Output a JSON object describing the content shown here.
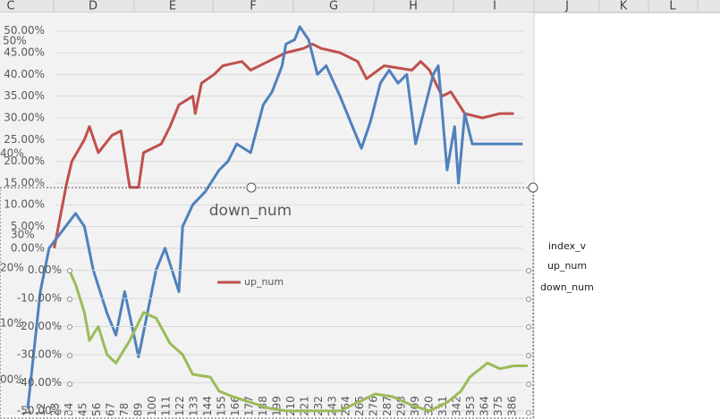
{
  "spreadsheet": {
    "columns": [
      "C",
      "D",
      "E",
      "F",
      "G",
      "H",
      "I",
      "J",
      "K",
      "L"
    ]
  },
  "side_labels": [
    "index_v",
    "up_num",
    "down_num"
  ],
  "background_axis_labels": [
    "50%",
    "40%",
    "30%",
    "20%",
    "10%",
    "00%"
  ],
  "chart_data": [
    {
      "type": "line",
      "xlim": [
        1,
        398
      ],
      "ylim": [
        -38.5,
        52
      ],
      "grid": true,
      "legend": "center",
      "yticks": [
        {
          "value": 0,
          "label": "0.00%"
        },
        {
          "value": 5,
          "label": "5.00%"
        },
        {
          "value": 10,
          "label": "10.00%"
        },
        {
          "value": 15,
          "label": "15.00%"
        },
        {
          "value": 20,
          "label": "20.00%"
        },
        {
          "value": 25,
          "label": "25.00%"
        },
        {
          "value": 30,
          "label": "30.00%"
        },
        {
          "value": 35,
          "label": "35.00%"
        },
        {
          "value": 40,
          "label": "40.00%"
        },
        {
          "value": 45,
          "label": "45.00%"
        },
        {
          "value": 50,
          "label": "50.00%"
        }
      ],
      "series": [
        {
          "name": "up_num",
          "color": "#c0504d",
          "x": [
            22,
            32,
            36,
            46,
            50,
            57,
            68,
            75,
            82,
            89,
            93,
            107,
            114,
            121,
            132,
            134,
            139,
            149,
            156,
            171,
            178,
            192,
            206,
            220,
            227,
            234,
            249,
            263,
            270,
            284,
            306,
            313,
            320,
            330,
            337,
            348,
            362,
            376,
            387
          ],
          "values": [
            0,
            15,
            20,
            25,
            28,
            22,
            26,
            27,
            14,
            14,
            22,
            24,
            28,
            33,
            35,
            31,
            38,
            40,
            42,
            43,
            41,
            43,
            45,
            46,
            47,
            46,
            45,
            43,
            39,
            42,
            41,
            43,
            41,
            35,
            36,
            31,
            30,
            31,
            31
          ]
        },
        {
          "color": "#4f81bd",
          "x": [
            1,
            11,
            18,
            39,
            46,
            53,
            64,
            71,
            78,
            89,
            103,
            110,
            121,
            124,
            132,
            142,
            153,
            160,
            167,
            178,
            188,
            195,
            203,
            206,
            213,
            217,
            224,
            231,
            238,
            249,
            256,
            266,
            273,
            281,
            288,
            295,
            302,
            309,
            316,
            323,
            327,
            334,
            340,
            343,
            348,
            354,
            394
          ],
          "values": [
            -37,
            -10,
            0,
            8,
            5,
            -5,
            -15,
            -20,
            -10,
            -25,
            -5,
            0,
            -10,
            5,
            10,
            13,
            18,
            20,
            24,
            22,
            33,
            36,
            42,
            47,
            48,
            51,
            48,
            40,
            42,
            35,
            30,
            23,
            29,
            38,
            41,
            38,
            40,
            24,
            32,
            40,
            42,
            18,
            28,
            15,
            31,
            24,
            24
          ]
        }
      ]
    },
    {
      "type": "line",
      "title": "down_num",
      "xlim": [
        1,
        398
      ],
      "ylim": [
        -51,
        4
      ],
      "grid": true,
      "xticks": [
        1,
        12,
        23,
        34,
        45,
        56,
        67,
        78,
        89,
        100,
        111,
        122,
        133,
        144,
        155,
        166,
        177,
        188,
        199,
        210,
        221,
        232,
        243,
        254,
        265,
        276,
        287,
        298,
        309,
        320,
        331,
        342,
        353,
        364,
        375,
        386
      ],
      "yticks": [
        {
          "value": 0,
          "label": "0.00%"
        },
        {
          "value": -10,
          "label": "-10.00%"
        },
        {
          "value": -20,
          "label": "-20.00%"
        },
        {
          "value": -30,
          "label": "-30.00%"
        },
        {
          "value": -40,
          "label": "-40.00%"
        },
        {
          "value": -50,
          "label": "-50.00%"
        }
      ],
      "series": [
        {
          "color": "#9bbb59",
          "x": [
            34,
            39,
            46,
            50,
            57,
            64,
            71,
            82,
            93,
            103,
            114,
            124,
            132,
            146,
            153,
            164,
            178,
            192,
            206,
            224,
            249,
            263,
            277,
            291,
            306,
            320,
            334,
            345,
            352,
            366,
            376,
            387,
            398
          ],
          "values": [
            0,
            -5,
            -15,
            -25,
            -20,
            -30,
            -33,
            -25,
            -15,
            -17,
            -26,
            -30,
            -37,
            -38,
            -43,
            -45,
            -47,
            -49,
            -50,
            -50,
            -50,
            -47,
            -44,
            -45,
            -48,
            -50,
            -47,
            -43,
            -38,
            -33,
            -35,
            -34,
            -34
          ]
        }
      ]
    }
  ]
}
